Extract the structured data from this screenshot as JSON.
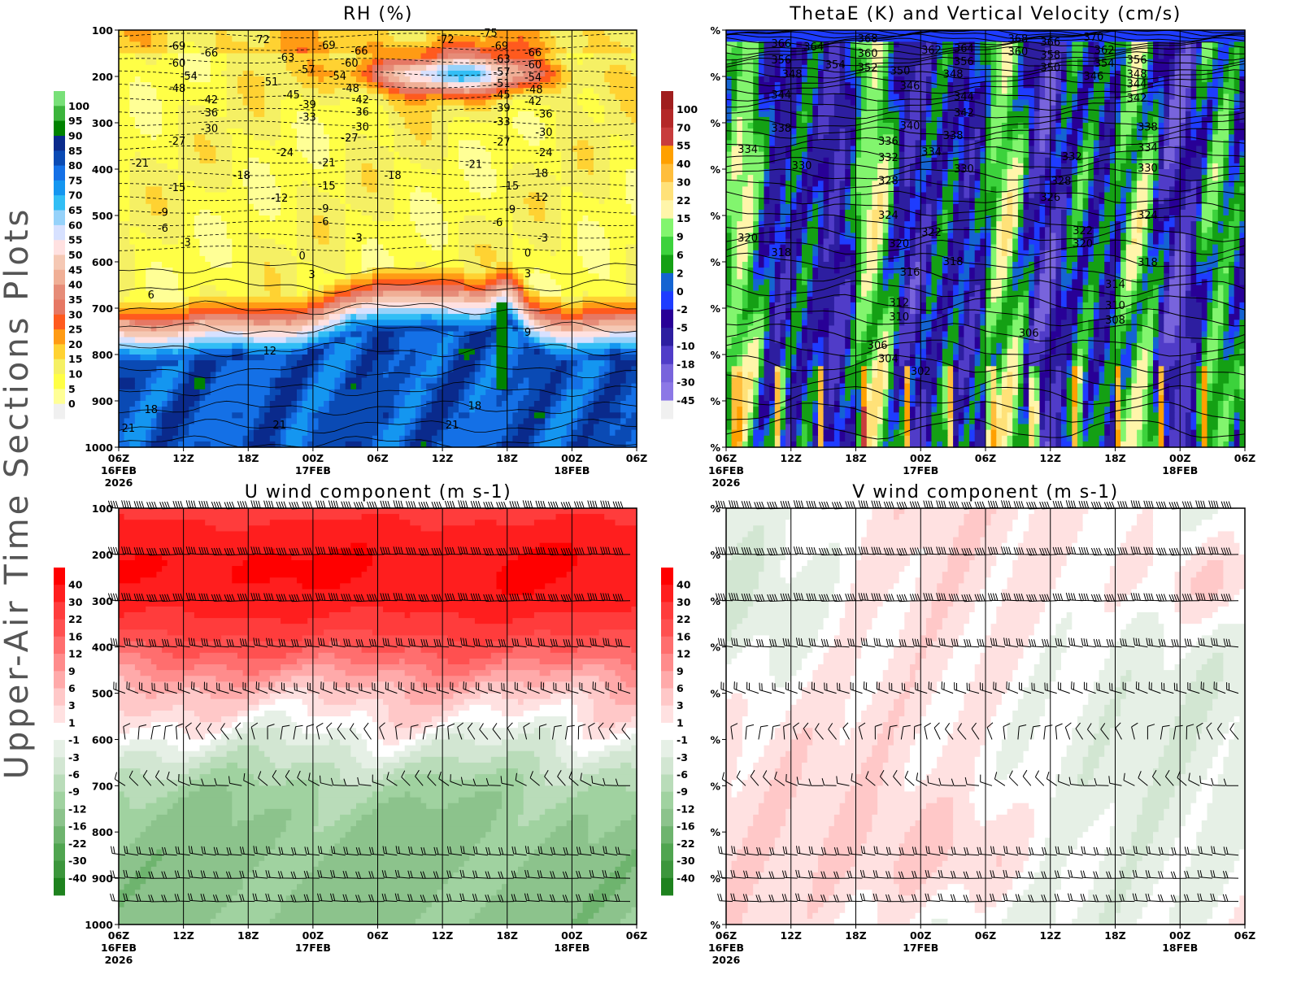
{
  "page_title": "Upper-Air Time Sections Plots",
  "time_axis": {
    "hours": [
      0,
      6,
      12,
      18,
      24,
      30,
      36,
      42,
      48
    ],
    "tick_labels": [
      "06Z",
      "12Z",
      "18Z",
      "00Z",
      "06Z",
      "12Z",
      "18Z",
      "00Z",
      "06Z"
    ],
    "date_labels": [
      "16FEB",
      "",
      "",
      "17FEB",
      "",
      "",
      "",
      "18FEB",
      ""
    ],
    "year_labels": [
      "2026",
      "",
      "",
      "",
      "",
      "",
      "",
      "",
      ""
    ]
  },
  "chart_data": [
    {
      "type": "heatmap",
      "title": "RH (%)",
      "xlim_hours": [
        0,
        48
      ],
      "ylim": [
        100,
        1000
      ],
      "y_ticks": [
        100,
        200,
        300,
        400,
        500,
        600,
        700,
        800,
        900,
        1000
      ],
      "y_tick_labels": [
        "100",
        "200",
        "300",
        "400",
        "500",
        "600",
        "700",
        "800",
        "900",
        "1000"
      ],
      "colorbar": {
        "labels": [
          "100",
          "95",
          "90",
          "85",
          "80",
          "75",
          "70",
          "65",
          "60",
          "55",
          "50",
          "45",
          "40",
          "35",
          "30",
          "25",
          "20",
          "15",
          "10",
          "5",
          "0"
        ],
        "colors": [
          "#78e078",
          "#3cb43c",
          "#008200",
          "#0a2a8c",
          "#0a4ab4",
          "#1470e6",
          "#1496f0",
          "#32bef5",
          "#96d2fa",
          "#d7e1ff",
          "#ffe1e1",
          "#f5c8b4",
          "#f0af96",
          "#e68c78",
          "#e67864",
          "#ff5a1e",
          "#ff9b14",
          "#ffd232",
          "#f5f064",
          "#ffff46",
          "#ffff96",
          "#f0f0f0"
        ]
      },
      "contour_labels": [
        {
          "v": "-69",
          "h": 5.4,
          "p": 135
        },
        {
          "v": "-66",
          "h": 8.4,
          "p": 150
        },
        {
          "v": "-72",
          "h": 13.2,
          "p": 121
        },
        {
          "v": "-69",
          "h": 19.3,
          "p": 133
        },
        {
          "v": "-66",
          "h": 22.3,
          "p": 146
        },
        {
          "v": "-72",
          "h": 30.3,
          "p": 121
        },
        {
          "v": "-75",
          "h": 34.3,
          "p": 107
        },
        {
          "v": "-69",
          "h": 35.3,
          "p": 135
        },
        {
          "v": "-66",
          "h": 38.4,
          "p": 149
        },
        {
          "v": "-60",
          "h": 5.4,
          "p": 172
        },
        {
          "v": "-63",
          "h": 15.5,
          "p": 160
        },
        {
          "v": "-57",
          "h": 17.4,
          "p": 186
        },
        {
          "v": "-60",
          "h": 21.4,
          "p": 172
        },
        {
          "v": "-63",
          "h": 35.5,
          "p": 163
        },
        {
          "v": "-60",
          "h": 38.4,
          "p": 175
        },
        {
          "v": "-54",
          "h": 6.5,
          "p": 200
        },
        {
          "v": "-51",
          "h": 14.0,
          "p": 212
        },
        {
          "v": "-54",
          "h": 20.3,
          "p": 200
        },
        {
          "v": "-57",
          "h": 35.5,
          "p": 191
        },
        {
          "v": "-54",
          "h": 38.4,
          "p": 203
        },
        {
          "v": "-48",
          "h": 5.4,
          "p": 226
        },
        {
          "v": "-51",
          "h": 35.5,
          "p": 216
        },
        {
          "v": "-48",
          "h": 38.5,
          "p": 229
        },
        {
          "v": "-45",
          "h": 16.0,
          "p": 240
        },
        {
          "v": "-48",
          "h": 21.5,
          "p": 226
        },
        {
          "v": "-45",
          "h": 35.5,
          "p": 240
        },
        {
          "v": "-42",
          "h": 8.4,
          "p": 251
        },
        {
          "v": "-39",
          "h": 17.5,
          "p": 261
        },
        {
          "v": "-42",
          "h": 22.4,
          "p": 251
        },
        {
          "v": "-42",
          "h": 38.4,
          "p": 254
        },
        {
          "v": "-36",
          "h": 8.4,
          "p": 279
        },
        {
          "v": "-33",
          "h": 17.5,
          "p": 289
        },
        {
          "v": "-36",
          "h": 22.4,
          "p": 277
        },
        {
          "v": "-39",
          "h": 35.5,
          "p": 268
        },
        {
          "v": "-36",
          "h": 39.4,
          "p": 282
        },
        {
          "v": "-30",
          "h": 8.4,
          "p": 313
        },
        {
          "v": "-30",
          "h": 22.4,
          "p": 310
        },
        {
          "v": "-33",
          "h": 35.5,
          "p": 298
        },
        {
          "v": "-30",
          "h": 39.4,
          "p": 321
        },
        {
          "v": "-27",
          "h": 5.4,
          "p": 340
        },
        {
          "v": "-27",
          "h": 21.4,
          "p": 333
        },
        {
          "v": "-27",
          "h": 35.5,
          "p": 342
        },
        {
          "v": "-24",
          "h": 15.4,
          "p": 365
        },
        {
          "v": "-24",
          "h": 39.4,
          "p": 365
        },
        {
          "v": "-21",
          "h": 2.0,
          "p": 388
        },
        {
          "v": "-21",
          "h": 19.3,
          "p": 387
        },
        {
          "v": "-21",
          "h": 32.9,
          "p": 390
        },
        {
          "v": "-18",
          "h": 11.4,
          "p": 414
        },
        {
          "v": "-18",
          "h": 25.4,
          "p": 414
        },
        {
          "v": "-18",
          "h": 39.0,
          "p": 410
        },
        {
          "v": "-15",
          "h": 5.4,
          "p": 440
        },
        {
          "v": "-15",
          "h": 19.3,
          "p": 437
        },
        {
          "v": "-15",
          "h": 36.3,
          "p": 437
        },
        {
          "v": "-12",
          "h": 14.9,
          "p": 463
        },
        {
          "v": "-12",
          "h": 39.0,
          "p": 461
        },
        {
          "v": "-9",
          "h": 4.1,
          "p": 494
        },
        {
          "v": "-9",
          "h": 19.0,
          "p": 486
        },
        {
          "v": "-9",
          "h": 36.3,
          "p": 488
        },
        {
          "v": "-6",
          "h": 4.1,
          "p": 528
        },
        {
          "v": "-6",
          "h": 19.0,
          "p": 514
        },
        {
          "v": "-6",
          "h": 35.1,
          "p": 516
        },
        {
          "v": "-3",
          "h": 6.2,
          "p": 559
        },
        {
          "v": "-3",
          "h": 22.1,
          "p": 549
        },
        {
          "v": "-3",
          "h": 39.3,
          "p": 549
        },
        {
          "v": "0",
          "h": 17.0,
          "p": 588
        },
        {
          "v": "0",
          "h": 37.9,
          "p": 582
        },
        {
          "v": "3",
          "h": 17.9,
          "p": 628
        },
        {
          "v": "3",
          "h": 37.9,
          "p": 626
        },
        {
          "v": "6",
          "h": 3.0,
          "p": 672
        },
        {
          "v": "9",
          "h": 37.9,
          "p": 753
        },
        {
          "v": "12",
          "h": 14.0,
          "p": 793
        },
        {
          "v": "18",
          "h": 3.0,
          "p": 919
        },
        {
          "v": "18",
          "h": 33.0,
          "p": 911
        },
        {
          "v": "21",
          "h": 0.9,
          "p": 960
        },
        {
          "v": "21",
          "h": 14.9,
          "p": 953
        },
        {
          "v": "21",
          "h": 30.9,
          "p": 953
        }
      ]
    },
    {
      "type": "heatmap",
      "title": "ThetaE (K) and Vertical Velocity (cm/s)",
      "xlim_hours": [
        0,
        48
      ],
      "ylim": [
        100,
        1000
      ],
      "y_tick_labels": [
        "%",
        "%",
        "%",
        "%",
        "%",
        "%",
        "%",
        "%",
        "%",
        "%"
      ],
      "colorbar": {
        "labels": [
          "100",
          "70",
          "55",
          "40",
          "30",
          "22",
          "15",
          "9",
          "6",
          "2",
          "0",
          "-2",
          "-5",
          "-10",
          "-18",
          "-30",
          "-45"
        ],
        "colors": [
          "#a01e1e",
          "#b42828",
          "#c83c3c",
          "#ffa000",
          "#ffbe3c",
          "#ffe178",
          "#fff5aa",
          "#82f56e",
          "#3cd23c",
          "#14a014",
          "#1464d2",
          "#1e3cff",
          "#280096",
          "#2d1ea0",
          "#503cc8",
          "#7864dc",
          "#8c78e6",
          "#f0f0f0"
        ]
      },
      "contour_labels": [
        {
          "v": "366",
          "h": 5.1,
          "p": 130
        },
        {
          "v": "364",
          "h": 8.1,
          "p": 137
        },
        {
          "v": "368",
          "h": 13.1,
          "p": 119
        },
        {
          "v": "360",
          "h": 13.1,
          "p": 151
        },
        {
          "v": "352",
          "h": 13.1,
          "p": 182
        },
        {
          "v": "350",
          "h": 16.1,
          "p": 189
        },
        {
          "v": "362",
          "h": 19.0,
          "p": 144
        },
        {
          "v": "364",
          "h": 22.0,
          "p": 140
        },
        {
          "v": "356",
          "h": 22.0,
          "p": 168
        },
        {
          "v": "348",
          "h": 21.0,
          "p": 196
        },
        {
          "v": "368",
          "h": 27.0,
          "p": 119
        },
        {
          "v": "360",
          "h": 27.0,
          "p": 147
        },
        {
          "v": "366",
          "h": 30.0,
          "p": 126
        },
        {
          "v": "358",
          "h": 30.0,
          "p": 154
        },
        {
          "v": "350",
          "h": 30.0,
          "p": 182
        },
        {
          "v": "370",
          "h": 34.0,
          "p": 116
        },
        {
          "v": "362",
          "h": 35.0,
          "p": 144
        },
        {
          "v": "354",
          "h": 35.0,
          "p": 172
        },
        {
          "v": "346",
          "h": 34.0,
          "p": 200
        },
        {
          "v": "356",
          "h": 38.0,
          "p": 165
        },
        {
          "v": "348",
          "h": 38.0,
          "p": 196
        },
        {
          "v": "356",
          "h": 5.1,
          "p": 165
        },
        {
          "v": "348",
          "h": 6.1,
          "p": 196
        },
        {
          "v": "354",
          "h": 10.1,
          "p": 175
        },
        {
          "v": "346",
          "h": 17.0,
          "p": 221
        },
        {
          "v": "344",
          "h": 5.1,
          "p": 240
        },
        {
          "v": "344",
          "h": 22.0,
          "p": 244
        },
        {
          "v": "342",
          "h": 22.0,
          "p": 279
        },
        {
          "v": "344",
          "h": 38.0,
          "p": 217
        },
        {
          "v": "342",
          "h": 38.0,
          "p": 247
        },
        {
          "v": "340",
          "h": 17.0,
          "p": 307
        },
        {
          "v": "338",
          "h": 5.1,
          "p": 312
        },
        {
          "v": "338",
          "h": 21.0,
          "p": 328
        },
        {
          "v": "338",
          "h": 39.0,
          "p": 310
        },
        {
          "v": "336",
          "h": 15.0,
          "p": 340
        },
        {
          "v": "334",
          "h": 2.0,
          "p": 358
        },
        {
          "v": "334",
          "h": 19.0,
          "p": 363
        },
        {
          "v": "334",
          "h": 39.0,
          "p": 354
        },
        {
          "v": "332",
          "h": 15.0,
          "p": 375
        },
        {
          "v": "332",
          "h": 32.0,
          "p": 374
        },
        {
          "v": "330",
          "h": 7.0,
          "p": 393
        },
        {
          "v": "330",
          "h": 22.0,
          "p": 400
        },
        {
          "v": "330",
          "h": 39.0,
          "p": 398
        },
        {
          "v": "328",
          "h": 15.0,
          "p": 425
        },
        {
          "v": "328",
          "h": 31.0,
          "p": 426
        },
        {
          "v": "326",
          "h": 30.0,
          "p": 461
        },
        {
          "v": "324",
          "h": 15.0,
          "p": 500
        },
        {
          "v": "324",
          "h": 39.0,
          "p": 500
        },
        {
          "v": "322",
          "h": 19.0,
          "p": 537
        },
        {
          "v": "322",
          "h": 33.0,
          "p": 533
        },
        {
          "v": "320",
          "h": 2.0,
          "p": 549
        },
        {
          "v": "320",
          "h": 16.0,
          "p": 561
        },
        {
          "v": "320",
          "h": 33.0,
          "p": 561
        },
        {
          "v": "318",
          "h": 5.1,
          "p": 581
        },
        {
          "v": "318",
          "h": 21.0,
          "p": 600
        },
        {
          "v": "318",
          "h": 39.0,
          "p": 602
        },
        {
          "v": "316",
          "h": 17.0,
          "p": 623
        },
        {
          "v": "314",
          "h": 36.0,
          "p": 649
        },
        {
          "v": "312",
          "h": 16.0,
          "p": 689
        },
        {
          "v": "310",
          "h": 16.0,
          "p": 719
        },
        {
          "v": "310",
          "h": 36.0,
          "p": 695
        },
        {
          "v": "308",
          "h": 36.0,
          "p": 726
        },
        {
          "v": "306",
          "h": 28.0,
          "p": 754
        },
        {
          "v": "306",
          "h": 14.0,
          "p": 781
        },
        {
          "v": "304",
          "h": 15.0,
          "p": 810
        },
        {
          "v": "302",
          "h": 18.0,
          "p": 837
        }
      ]
    },
    {
      "type": "heatmap",
      "title": "U wind component (m s-1)",
      "xlim_hours": [
        0,
        48
      ],
      "ylim": [
        100,
        1000
      ],
      "y_tick_labels": [
        "100",
        "200",
        "300",
        "400",
        "500",
        "600",
        "700",
        "800",
        "900",
        "1000"
      ],
      "colorbar": {
        "labels": [
          "40",
          "30",
          "22",
          "16",
          "12",
          "9",
          "6",
          "3",
          "1",
          "-1",
          "-3",
          "-6",
          "-9",
          "-12",
          "-16",
          "-22",
          "-30",
          "-40"
        ],
        "colors": [
          "#ff0000",
          "#ff1e1e",
          "#ff3c3c",
          "#ff5050",
          "#ff6e6e",
          "#ff8c8c",
          "#ffaaaa",
          "#ffc8c8",
          "#ffe1e1",
          "#ffffff",
          "#e6f0e6",
          "#d2e6d2",
          "#b9dcb9",
          "#a0d2a0",
          "#8cc38c",
          "#6eb46e",
          "#50a550",
          "#3c963c",
          "#1e821e"
        ]
      },
      "wind_barb_levels": [
        100,
        200,
        300,
        400,
        500,
        600,
        700,
        850,
        900,
        950
      ]
    },
    {
      "type": "heatmap",
      "title": "V wind component (m s-1)",
      "xlim_hours": [
        0,
        48
      ],
      "ylim": [
        100,
        1000
      ],
      "y_tick_labels": [
        "%",
        "%",
        "%",
        "%",
        "%",
        "%",
        "%",
        "%",
        "%",
        "%"
      ],
      "colorbar": {
        "labels": [
          "40",
          "30",
          "22",
          "16",
          "12",
          "9",
          "6",
          "3",
          "1",
          "-1",
          "-3",
          "-6",
          "-9",
          "-12",
          "-16",
          "-22",
          "-30",
          "-40"
        ],
        "colors": [
          "#ff0000",
          "#ff1e1e",
          "#ff3c3c",
          "#ff5050",
          "#ff6e6e",
          "#ff8c8c",
          "#ffaaaa",
          "#ffc8c8",
          "#ffe1e1",
          "#ffffff",
          "#e6f0e6",
          "#d2e6d2",
          "#b9dcb9",
          "#a0d2a0",
          "#8cc38c",
          "#6eb46e",
          "#50a550",
          "#3c963c",
          "#1e821e"
        ]
      },
      "wind_barb_levels": [
        100,
        200,
        300,
        400,
        500,
        600,
        700,
        850,
        900,
        950
      ]
    }
  ]
}
